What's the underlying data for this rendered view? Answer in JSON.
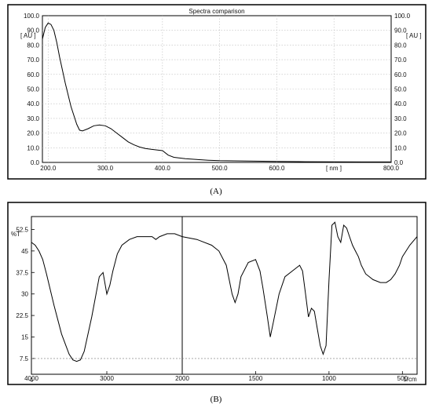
{
  "chart_data": [
    {
      "type": "line",
      "title": "Spectra comparison",
      "ylabel": "[ AU ]",
      "xlabel": "[ nm ]",
      "xlim": [
        190,
        800
      ],
      "ylim": [
        0,
        100
      ],
      "x_ticks": [
        "200.0",
        "300.0",
        "400.0",
        "500.0",
        "600.0",
        "700.0",
        "800.0"
      ],
      "y_ticks": [
        "0.0",
        "10.0",
        "20.0",
        "30.0",
        "40.0",
        "50.0",
        "60.0",
        "70.0",
        "80.0",
        "90.0",
        "100.0"
      ],
      "grid": true,
      "series": [
        {
          "x": [
            190,
            195,
            200,
            205,
            210,
            215,
            220,
            230,
            240,
            250,
            255,
            260,
            270,
            280,
            290,
            300,
            310,
            320,
            330,
            340,
            350,
            360,
            370,
            380,
            390,
            400,
            410,
            420,
            440,
            460,
            480,
            500,
            550,
            600,
            650,
            700,
            750,
            800
          ],
          "y": [
            84,
            92,
            95,
            94,
            90,
            82,
            72,
            54,
            38,
            26,
            22,
            21.5,
            23,
            25,
            25.5,
            25,
            23,
            20,
            17,
            14,
            12,
            10.5,
            9.5,
            9,
            8.5,
            8,
            5,
            3.5,
            2.5,
            2,
            1.5,
            1.2,
            0.9,
            0.7,
            0.5,
            0.4,
            0.3,
            0.3
          ],
          "color": "#000000"
        }
      ],
      "caption": "(A)"
    },
    {
      "type": "line",
      "ylabel": "%T",
      "xlabel": "1/cm",
      "xlim": [
        4000,
        400
      ],
      "ylim": [
        2,
        57
      ],
      "x_ticks": [
        "4000",
        "3000",
        "2000",
        "1500",
        "1000",
        "500"
      ],
      "x_sub": "4",
      "y_ticks": [
        "7.5",
        "15",
        "22.5",
        "30",
        "37.5",
        "45",
        "52.5"
      ],
      "grid": false,
      "series": [
        {
          "x": [
            4000,
            3950,
            3900,
            3850,
            3800,
            3700,
            3600,
            3500,
            3450,
            3400,
            3350,
            3300,
            3200,
            3100,
            3050,
            3000,
            2960,
            2920,
            2860,
            2800,
            2700,
            2600,
            2500,
            2400,
            2350,
            2300,
            2200,
            2100,
            2000,
            1900,
            1800,
            1750,
            1700,
            1660,
            1640,
            1620,
            1600,
            1550,
            1500,
            1470,
            1450,
            1420,
            1400,
            1380,
            1340,
            1300,
            1250,
            1200,
            1180,
            1160,
            1140,
            1120,
            1100,
            1080,
            1060,
            1040,
            1020,
            1000,
            980,
            960,
            940,
            920,
            900,
            880,
            860,
            840,
            820,
            800,
            780,
            750,
            700,
            650,
            610,
            580,
            550,
            520,
            500,
            450,
            400
          ],
          "y": [
            48,
            47,
            45,
            42,
            37,
            26,
            16,
            9,
            7,
            6.5,
            7,
            10,
            22,
            36,
            37.5,
            30,
            33,
            38,
            44,
            47,
            49,
            50,
            50,
            50,
            49,
            50,
            51,
            51,
            50,
            49,
            47,
            45,
            40,
            30,
            27,
            30,
            36,
            41,
            42,
            38,
            32,
            22,
            15,
            20,
            30,
            36,
            38,
            40,
            38,
            30,
            22,
            25,
            24,
            18,
            12,
            9,
            12,
            35,
            54,
            55,
            50,
            48,
            54,
            53,
            50,
            47,
            45,
            43,
            40,
            37,
            35,
            34,
            34,
            35,
            37,
            40,
            43,
            47,
            50
          ],
          "color": "#000000"
        }
      ],
      "caption": "(B)"
    }
  ]
}
